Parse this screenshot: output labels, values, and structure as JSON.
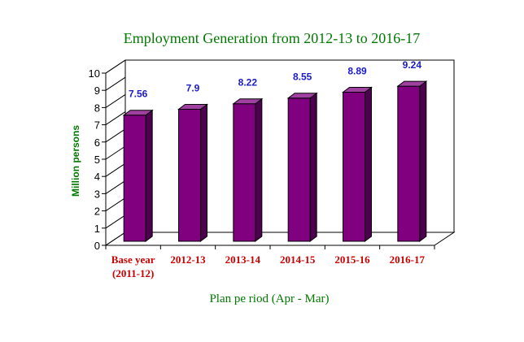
{
  "chart_data": {
    "type": "bar",
    "title": "Employment Generation from 2012-13 to 2016-17",
    "xlabel": "Plan pe riod (Apr - Mar)",
    "ylabel": "Million persons",
    "categories": [
      [
        "Base year",
        "(2011-12)"
      ],
      [
        "2012-13"
      ],
      [
        "2013-14"
      ],
      [
        "2014-15"
      ],
      [
        "2015-16"
      ],
      [
        "2016-17"
      ]
    ],
    "values": [
      7.56,
      7.9,
      8.22,
      8.55,
      8.89,
      9.24
    ],
    "value_labels": [
      "7.56",
      "7.9",
      "8.22",
      "8.55",
      "8.89",
      "9.24"
    ],
    "ylim": [
      0,
      10
    ],
    "yticks": [
      "0",
      "1",
      "2",
      "3",
      "4",
      "5",
      "6",
      "7",
      "8",
      "9",
      "10"
    ],
    "grid": false,
    "legend": "none",
    "style": "3d",
    "colors": {
      "bar_front": "#800080",
      "bar_side": "#4d004d",
      "bar_top": "#a040a0",
      "title": "#007a00",
      "axis_labels": "#007a00",
      "category_labels": "#cc0000",
      "data_labels": "#1a1acc"
    }
  }
}
